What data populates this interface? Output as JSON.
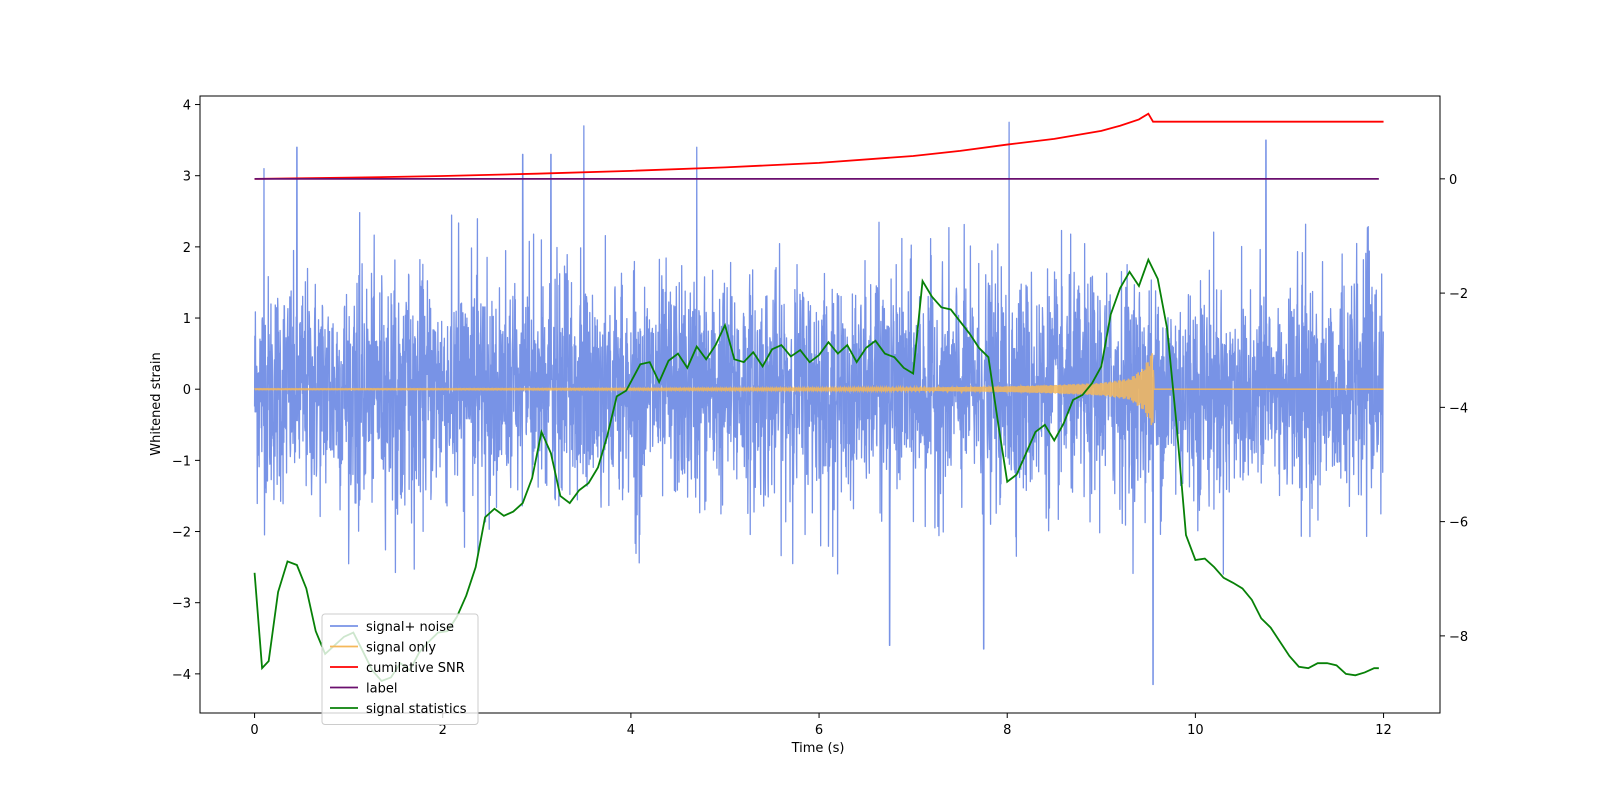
{
  "chart_data": {
    "type": "line",
    "title": "",
    "xlabel": "Time (s)",
    "ylabel": "Whitened strain",
    "ylabel_right": "",
    "xlim": [
      -0.58,
      12.6
    ],
    "ylim": [
      -4.55,
      4.12
    ],
    "ylim_right": [
      -9.35,
      1.45
    ],
    "x_ticks": [
      0,
      2,
      4,
      6,
      8,
      10,
      12
    ],
    "x_tick_labels": [
      "0",
      "2",
      "4",
      "6",
      "8",
      "10",
      "12"
    ],
    "y_ticks": [
      -4,
      -3,
      -2,
      -1,
      0,
      1,
      2,
      3,
      4
    ],
    "y_tick_labels": [
      "−4",
      "−3",
      "−2",
      "−1",
      "0",
      "1",
      "2",
      "3",
      "4"
    ],
    "y_right_ticks": [
      -8,
      -6,
      -4,
      -2,
      0
    ],
    "y_right_tick_labels": [
      "−8",
      "−6",
      "−4",
      "−2",
      "0"
    ],
    "grid": false,
    "legend_position": "lower-left",
    "series": [
      {
        "name": "signal+ noise",
        "color": "#7893e6",
        "axis": "left",
        "description_values": {
          "x_range": [
            0,
            12
          ],
          "approx_band": [
            -2.0,
            2.0
          ],
          "extreme_peaks": [
            {
              "x": 0.1,
              "y": 3.1
            },
            {
              "x": 0.45,
              "y": 3.4
            },
            {
              "x": 2.85,
              "y": 3.3
            },
            {
              "x": 3.15,
              "y": 3.3
            },
            {
              "x": 3.5,
              "y": 3.7
            },
            {
              "x": 4.7,
              "y": 3.4
            },
            {
              "x": 8.02,
              "y": 3.75
            },
            {
              "x": 10.75,
              "y": 3.5
            },
            {
              "x": 9.55,
              "y": -4.15
            },
            {
              "x": 6.75,
              "y": -3.6
            },
            {
              "x": 7.75,
              "y": -3.65
            }
          ]
        }
      },
      {
        "name": "signal only",
        "color": "#f5b85a",
        "axis": "left",
        "envelope": {
          "x": [
            0,
            2,
            4,
            6,
            7,
            8,
            8.5,
            9,
            9.3,
            9.45,
            9.55,
            9.56,
            12
          ],
          "amplitude": [
            0.005,
            0.006,
            0.01,
            0.015,
            0.02,
            0.04,
            0.06,
            0.09,
            0.15,
            0.3,
            0.55,
            0.0,
            0.0
          ]
        }
      },
      {
        "name": "cumilative SNR",
        "color": "#ff0000",
        "axis": "right",
        "x": [
          0,
          1,
          2,
          3,
          4,
          5,
          6,
          7,
          7.5,
          8,
          8.5,
          9,
          9.2,
          9.4,
          9.5,
          9.55,
          10,
          11,
          12
        ],
        "values": [
          0.0,
          0.02,
          0.05,
          0.09,
          0.14,
          0.2,
          0.28,
          0.4,
          0.49,
          0.6,
          0.7,
          0.84,
          0.93,
          1.04,
          1.14,
          1.0,
          1.0,
          1.0,
          1.0
        ]
      },
      {
        "name": "label",
        "color": "#6a0f6e",
        "axis": "right",
        "x": [
          0,
          11.95
        ],
        "values": [
          0.0,
          0.0
        ]
      },
      {
        "name": "signal statistics",
        "color": "#078107",
        "axis": "left",
        "x": [
          0,
          0.08,
          0.15,
          0.25,
          0.35,
          0.45,
          0.55,
          0.65,
          0.75,
          0.85,
          0.95,
          1.05,
          1.15,
          1.25,
          1.35,
          1.45,
          1.55,
          1.65,
          1.75,
          1.85,
          1.95,
          2.05,
          2.15,
          2.25,
          2.35,
          2.45,
          2.55,
          2.65,
          2.75,
          2.85,
          2.95,
          3.05,
          3.15,
          3.25,
          3.35,
          3.45,
          3.55,
          3.65,
          3.75,
          3.85,
          3.95,
          4.1,
          4.2,
          4.3,
          4.4,
          4.5,
          4.6,
          4.7,
          4.8,
          4.9,
          5.0,
          5.1,
          5.2,
          5.3,
          5.4,
          5.5,
          5.6,
          5.7,
          5.8,
          5.9,
          6.0,
          6.1,
          6.2,
          6.3,
          6.4,
          6.5,
          6.6,
          6.7,
          6.8,
          6.9,
          7.0,
          7.1,
          7.2,
          7.3,
          7.4,
          7.5,
          7.6,
          7.7,
          7.8,
          7.9,
          8.0,
          8.1,
          8.2,
          8.3,
          8.4,
          8.5,
          8.6,
          8.7,
          8.8,
          8.9,
          9.0,
          9.1,
          9.2,
          9.3,
          9.4,
          9.5,
          9.6,
          9.7,
          9.8,
          9.9,
          10.0,
          10.1,
          10.2,
          10.3,
          10.4,
          10.5,
          10.6,
          10.7,
          10.8,
          10.9,
          11.0,
          11.1,
          11.2,
          11.3,
          11.4,
          11.5,
          11.6,
          11.7,
          11.8,
          11.9,
          11.95
        ],
        "values": [
          -2.58,
          -3.92,
          -3.82,
          -2.85,
          -2.42,
          -2.47,
          -2.8,
          -3.4,
          -3.72,
          -3.6,
          -3.48,
          -3.42,
          -3.68,
          -3.95,
          -4.1,
          -4.05,
          -3.85,
          -3.95,
          -3.7,
          -3.55,
          -3.42,
          -3.4,
          -3.2,
          -2.9,
          -2.5,
          -1.8,
          -1.68,
          -1.78,
          -1.72,
          -1.6,
          -1.25,
          -0.6,
          -0.9,
          -1.5,
          -1.6,
          -1.42,
          -1.32,
          -1.1,
          -0.65,
          -0.1,
          -0.02,
          0.35,
          0.38,
          0.1,
          0.4,
          0.5,
          0.3,
          0.6,
          0.42,
          0.62,
          0.9,
          0.42,
          0.38,
          0.52,
          0.32,
          0.56,
          0.62,
          0.46,
          0.55,
          0.38,
          0.48,
          0.66,
          0.5,
          0.62,
          0.38,
          0.58,
          0.68,
          0.5,
          0.45,
          0.3,
          0.22,
          1.52,
          1.3,
          1.15,
          1.12,
          0.95,
          0.78,
          0.58,
          0.45,
          -0.45,
          -1.3,
          -1.2,
          -0.9,
          -0.6,
          -0.5,
          -0.72,
          -0.48,
          -0.15,
          -0.08,
          0.08,
          0.32,
          1.05,
          1.42,
          1.65,
          1.45,
          1.82,
          1.55,
          0.85,
          -0.5,
          -2.05,
          -2.4,
          -2.38,
          -2.5,
          -2.65,
          -2.72,
          -2.8,
          -2.96,
          -3.22,
          -3.35,
          -3.55,
          -3.75,
          -3.9,
          -3.92,
          -3.85,
          -3.85,
          -3.88,
          -4.0,
          -4.02,
          -3.98,
          -3.92,
          -3.92
        ]
      }
    ]
  },
  "legend": {
    "items": [
      {
        "label": "signal+ noise",
        "color": "#7893e6"
      },
      {
        "label": "signal only",
        "color": "#f5b85a"
      },
      {
        "label": "cumilative SNR",
        "color": "#ff0000"
      },
      {
        "label": "label",
        "color": "#6a0f6e"
      },
      {
        "label": "signal statistics",
        "color": "#078107"
      }
    ]
  }
}
